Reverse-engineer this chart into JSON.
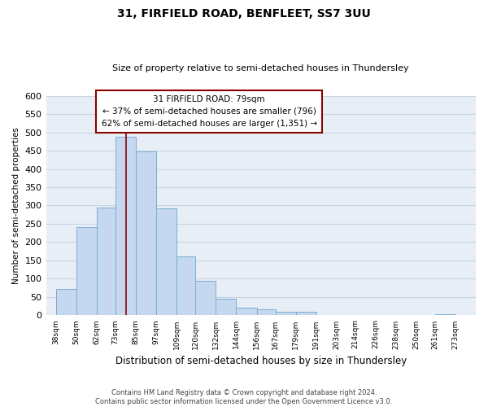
{
  "title": "31, FIRFIELD ROAD, BENFLEET, SS7 3UU",
  "subtitle": "Size of property relative to semi-detached houses in Thundersley",
  "xlabel": "Distribution of semi-detached houses by size in Thundersley",
  "ylabel": "Number of semi-detached properties",
  "footer_line1": "Contains HM Land Registry data © Crown copyright and database right 2024.",
  "footer_line2": "Contains public sector information licensed under the Open Government Licence v3.0.",
  "bar_left_edges": [
    38,
    50,
    62,
    73,
    85,
    97,
    109,
    120,
    132,
    144,
    156,
    167,
    179,
    191,
    203,
    214,
    226,
    238,
    250,
    261
  ],
  "bar_heights": [
    72,
    240,
    295,
    487,
    448,
    293,
    160,
    95,
    45,
    22,
    17,
    9,
    9,
    0,
    0,
    0,
    0,
    0,
    0,
    3
  ],
  "bar_widths": [
    12,
    12,
    11,
    12,
    12,
    12,
    11,
    12,
    12,
    12,
    11,
    12,
    12,
    12,
    11,
    12,
    12,
    12,
    11,
    12
  ],
  "x_tick_labels": [
    "38sqm",
    "50sqm",
    "62sqm",
    "73sqm",
    "85sqm",
    "97sqm",
    "109sqm",
    "120sqm",
    "132sqm",
    "144sqm",
    "156sqm",
    "167sqm",
    "179sqm",
    "191sqm",
    "203sqm",
    "214sqm",
    "226sqm",
    "238sqm",
    "250sqm",
    "261sqm",
    "273sqm"
  ],
  "x_tick_positions": [
    38,
    50,
    62,
    73,
    85,
    97,
    109,
    120,
    132,
    144,
    156,
    167,
    179,
    191,
    203,
    214,
    226,
    238,
    250,
    261,
    273
  ],
  "ylim": [
    0,
    600
  ],
  "yticks": [
    0,
    50,
    100,
    150,
    200,
    250,
    300,
    350,
    400,
    450,
    500,
    550,
    600
  ],
  "bar_color": "#c5d8f0",
  "bar_edge_color": "#7aadd4",
  "grid_color": "#c8d4e4",
  "background_color": "#e8eef6",
  "fig_background_color": "#ffffff",
  "marker_x": 79,
  "marker_color": "#8b0000",
  "annotation_title": "31 FIRFIELD ROAD: 79sqm",
  "annotation_line1": "← 37% of semi-detached houses are smaller (796)",
  "annotation_line2": "62% of semi-detached houses are larger (1,351) →",
  "annotation_box_color": "#ffffff",
  "annotation_box_edge_color": "#8b0000",
  "xlim_left": 32,
  "xlim_right": 285
}
